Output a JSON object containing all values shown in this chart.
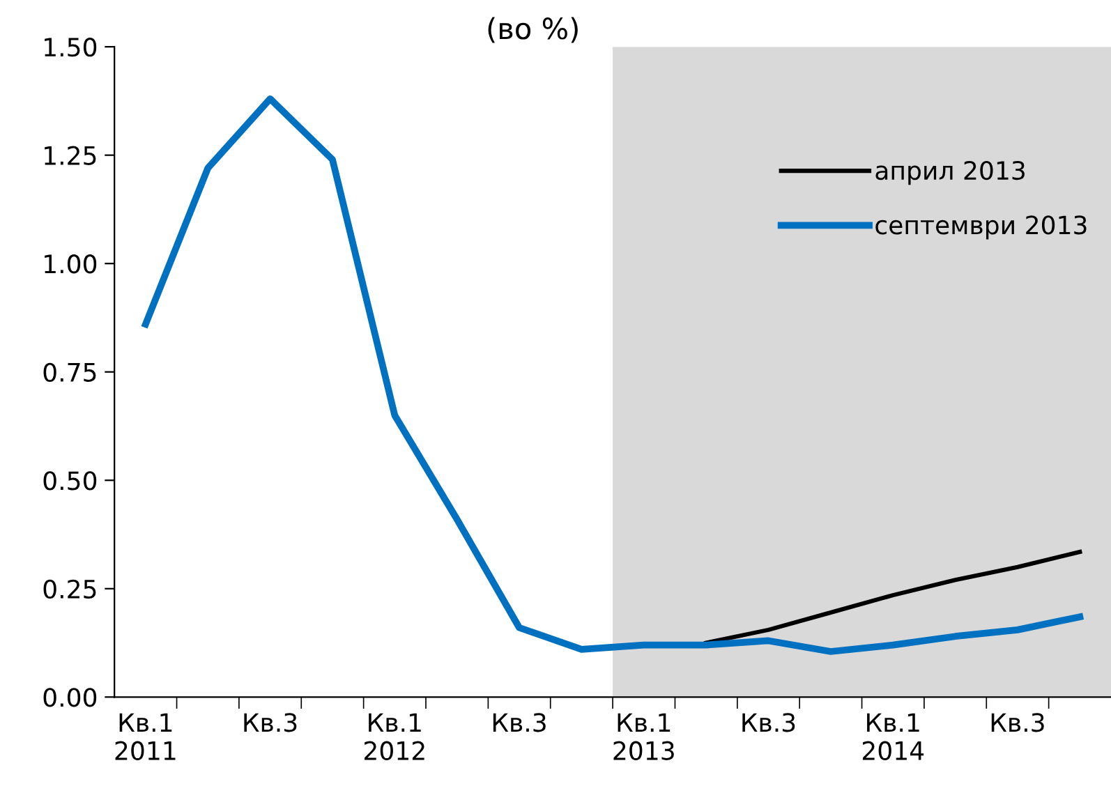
{
  "chart_data": {
    "type": "line",
    "title": "(во %)",
    "categories": [
      "Кв.1\n2011",
      null,
      "Кв.3",
      null,
      "Кв.1\n2012",
      null,
      "Кв.3",
      null,
      "Кв.1\n2013",
      null,
      "Кв.3",
      null,
      "Кв.1\n2014",
      null,
      "Кв.3",
      null
    ],
    "series": [
      {
        "name": "април 2013",
        "color": "#000000",
        "values": [
          null,
          null,
          null,
          null,
          null,
          null,
          null,
          null,
          null,
          0.125,
          0.155,
          0.195,
          0.235,
          0.27,
          0.3,
          0.335
        ]
      },
      {
        "name": "септември 2013",
        "color": "#0070c0",
        "values": [
          0.86,
          1.22,
          1.38,
          1.24,
          0.65,
          0.41,
          0.16,
          0.11,
          0.12,
          0.12,
          0.13,
          0.105,
          0.12,
          0.14,
          0.155,
          0.185
        ]
      }
    ],
    "ylim": [
      0,
      1.5
    ],
    "yticks": [
      {
        "value": 0,
        "label": "0.00"
      },
      {
        "value": 0.25,
        "label": "0.25"
      },
      {
        "value": 0.5,
        "label": "0.50"
      },
      {
        "value": 0.75,
        "label": "0.75"
      },
      {
        "value": 1,
        "label": "1.00"
      },
      {
        "value": 1.25,
        "label": "1.25"
      },
      {
        "value": 1.5,
        "label": "1.50"
      }
    ],
    "grid": false,
    "legend": "top right",
    "marker": "none",
    "line_style": "solid"
  }
}
